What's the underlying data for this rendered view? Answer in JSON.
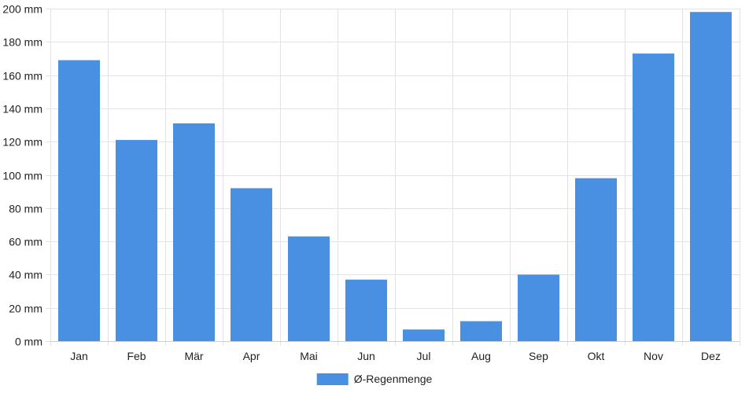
{
  "chart_data": {
    "type": "bar",
    "categories": [
      "Jan",
      "Feb",
      "Mär",
      "Apr",
      "Mai",
      "Jun",
      "Jul",
      "Aug",
      "Sep",
      "Okt",
      "Nov",
      "Dez"
    ],
    "series": [
      {
        "name": "Ø-Regenmenge",
        "values": [
          169,
          121,
          131,
          92,
          63,
          37,
          7,
          12,
          40,
          98,
          173,
          198
        ],
        "color": "#4a90e2"
      }
    ],
    "y_unit": "mm",
    "ylim": [
      0,
      200
    ],
    "yticks": [
      0,
      20,
      40,
      60,
      80,
      100,
      120,
      140,
      160,
      180,
      200
    ],
    "ytick_labels": [
      "0 mm",
      "20 mm",
      "40 mm",
      "60 mm",
      "80 mm",
      "100 mm",
      "120 mm",
      "140 mm",
      "160 mm",
      "180 mm",
      "200 mm"
    ],
    "grid": true,
    "legend_position": "bottom-center"
  }
}
